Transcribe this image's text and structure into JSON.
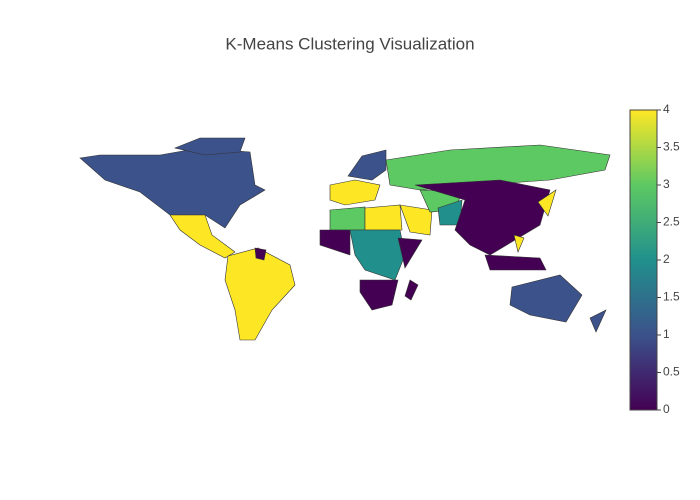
{
  "chart_data": {
    "type": "choropleth",
    "title": "K-Means Clustering Visualization",
    "values": [
      1,
      1,
      4,
      4,
      0,
      4,
      1,
      3,
      3,
      4,
      4,
      3,
      2,
      0,
      0,
      2,
      0,
      0,
      0,
      0,
      1,
      1,
      4,
      4
    ],
    "colorscale": [
      "#440154",
      "#3b528b",
      "#21908d",
      "#5dc963",
      "#fde725"
    ],
    "clim": [
      0,
      4
    ],
    "colorbar_ticks": [
      0,
      0.5,
      1,
      1.5,
      2,
      2.5,
      3,
      3.5,
      4
    ]
  }
}
